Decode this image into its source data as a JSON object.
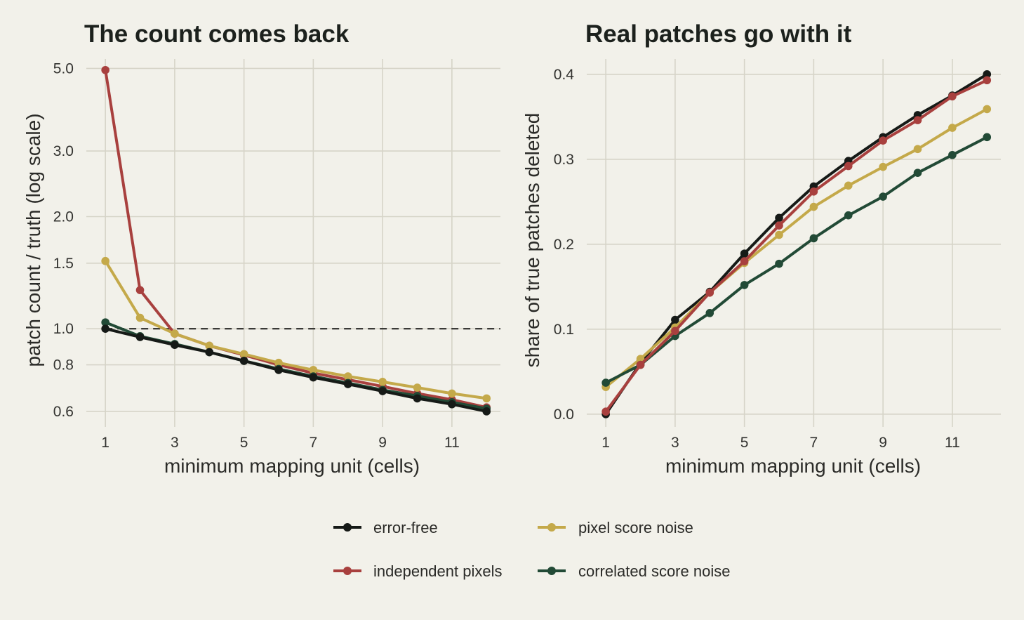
{
  "legend": [
    {
      "label": "error-free",
      "color": "#161a17"
    },
    {
      "label": "pixel score noise",
      "color": "#c4a94a"
    },
    {
      "label": "independent pixels",
      "color": "#a8403e"
    },
    {
      "label": "correlated score noise",
      "color": "#224a36"
    }
  ],
  "chart_data": [
    {
      "type": "line",
      "title": "The count comes back",
      "xlabel": "minimum mapping unit (cells)",
      "ylabel": "patch count / truth (log scale)",
      "yscale": "log",
      "xlim": [
        0.45,
        12.4
      ],
      "ylim": [
        0.545,
        5.3
      ],
      "xticks": [
        1,
        3,
        5,
        7,
        9,
        11
      ],
      "xtick_labels": [
        "1",
        "3",
        "5",
        "7",
        "9",
        "11"
      ],
      "yticks": [
        0.6,
        0.8,
        1.0,
        1.5,
        2.0,
        3.0,
        5.0
      ],
      "ytick_labels": [
        "0.6",
        "0.8",
        "1.0",
        "1.5",
        "2.0",
        "3.0",
        "5.0"
      ],
      "reference_line": {
        "y": 1.0,
        "style": "dashed"
      },
      "x": [
        1,
        2,
        3,
        4,
        5,
        6,
        7,
        8,
        9,
        10,
        11,
        12
      ],
      "series": [
        {
          "name": "independent pixels",
          "color": "#a8403e",
          "values": [
            4.95,
            1.27,
            0.97,
            0.9,
            0.85,
            0.8,
            0.76,
            0.73,
            0.7,
            0.67,
            0.645,
            0.615
          ]
        },
        {
          "name": "pixel score noise",
          "color": "#c4a94a",
          "values": [
            1.52,
            1.07,
            0.97,
            0.9,
            0.855,
            0.81,
            0.775,
            0.745,
            0.72,
            0.695,
            0.67,
            0.65
          ]
        },
        {
          "name": "correlated score noise",
          "color": "#224a36",
          "values": [
            1.04,
            0.955,
            0.91,
            0.865,
            0.82,
            0.78,
            0.745,
            0.715,
            0.685,
            0.66,
            0.635,
            0.61
          ]
        },
        {
          "name": "error-free",
          "color": "#161a17",
          "values": [
            1.0,
            0.95,
            0.905,
            0.865,
            0.82,
            0.775,
            0.74,
            0.71,
            0.68,
            0.65,
            0.627,
            0.6
          ]
        }
      ]
    },
    {
      "type": "line",
      "title": "Real patches go with it",
      "xlabel": "minimum mapping unit (cells)",
      "ylabel": "share of true patches deleted",
      "xlim": [
        0.45,
        12.4
      ],
      "ylim": [
        -0.015,
        0.418
      ],
      "xticks": [
        1,
        3,
        5,
        7,
        9,
        11
      ],
      "xtick_labels": [
        "1",
        "3",
        "5",
        "7",
        "9",
        "11"
      ],
      "yticks": [
        0.0,
        0.1,
        0.2,
        0.3,
        0.4
      ],
      "ytick_labels": [
        "0.0",
        "0.1",
        "0.2",
        "0.3",
        "0.4"
      ],
      "x": [
        1,
        2,
        3,
        4,
        5,
        6,
        7,
        8,
        9,
        10,
        11,
        12
      ],
      "series": [
        {
          "name": "error-free",
          "color": "#161a17",
          "values": [
            0.0,
            0.06,
            0.111,
            0.144,
            0.189,
            0.231,
            0.268,
            0.298,
            0.326,
            0.352,
            0.375,
            0.4
          ]
        },
        {
          "name": "pixel score noise",
          "color": "#c4a94a",
          "values": [
            0.032,
            0.065,
            0.102,
            0.143,
            0.178,
            0.211,
            0.244,
            0.269,
            0.291,
            0.312,
            0.337,
            0.359
          ]
        },
        {
          "name": "correlated score noise",
          "color": "#224a36",
          "values": [
            0.037,
            0.058,
            0.092,
            0.119,
            0.152,
            0.177,
            0.207,
            0.234,
            0.256,
            0.284,
            0.305,
            0.326
          ]
        },
        {
          "name": "independent pixels",
          "color": "#a8403e",
          "values": [
            0.003,
            0.058,
            0.098,
            0.143,
            0.18,
            0.222,
            0.262,
            0.292,
            0.322,
            0.346,
            0.374,
            0.393
          ]
        }
      ]
    }
  ]
}
